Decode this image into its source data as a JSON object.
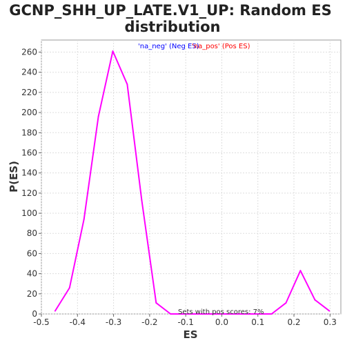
{
  "chart_data": {
    "type": "line",
    "title_line1": "GCNP_SHH_UP_LATE.V1_UP: Random ES",
    "title_line2": "distribution",
    "xlabel": "ES",
    "ylabel": "P(ES)",
    "xlim": [
      -0.5,
      0.33
    ],
    "ylim": [
      0,
      272
    ],
    "xticks": [
      "-0.5",
      "-0.4",
      "-0.3",
      "-0.2",
      "-0.1",
      "0.0",
      "0.1",
      "0.2",
      "0.3"
    ],
    "yticks": [
      "0",
      "20",
      "40",
      "60",
      "80",
      "100",
      "120",
      "140",
      "160",
      "180",
      "200",
      "220",
      "240",
      "260"
    ],
    "grid": true,
    "legend": {
      "placement": "top-center",
      "neg_label": "'na_neg' (Neg ES)",
      "pos_label": "'na_pos' (Pos ES)",
      "neg_color": "#0000ff",
      "pos_color": "#ff0000"
    },
    "annotation": "Sets with pos scores: 7%",
    "series": [
      {
        "color": "#ff00ff",
        "x": [
          -0.462,
          -0.422,
          -0.382,
          -0.342,
          -0.302,
          -0.262,
          -0.222,
          -0.182,
          -0.142,
          -0.102,
          -0.062,
          -0.022,
          0.018,
          0.058,
          0.098,
          0.138,
          0.178,
          0.218,
          0.258,
          0.298
        ],
        "y": [
          3,
          26,
          94,
          196,
          261,
          228,
          113,
          11,
          0,
          0,
          0,
          0,
          0,
          0,
          0,
          0,
          11,
          43,
          14,
          3
        ]
      }
    ]
  }
}
